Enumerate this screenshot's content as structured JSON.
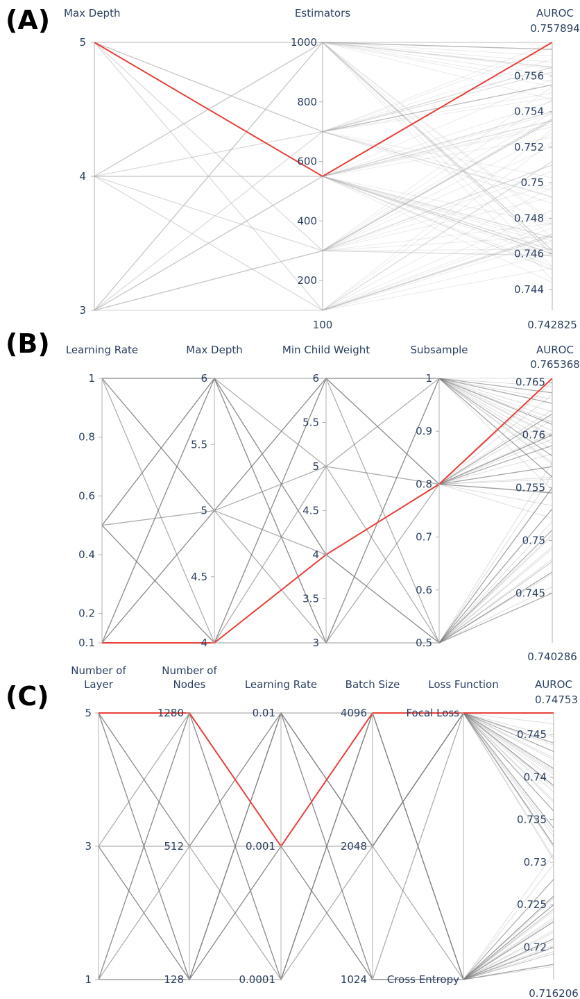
{
  "chart_data": [
    {
      "type": "parallel_coordinates",
      "panel_label": "(A)",
      "highlight_color": "#e8403a",
      "line_color": "#b0b0b0",
      "dimensions": [
        {
          "label": "Max Depth",
          "range": [
            3,
            5
          ],
          "ticks": [
            "3",
            "4",
            "5"
          ]
        },
        {
          "label": "Estimators",
          "range": [
            100,
            1000
          ],
          "ticks": [
            "200",
            "400",
            "600",
            "800",
            "1000"
          ],
          "range_labels": {
            "min": "100",
            "max": ""
          }
        },
        {
          "label": "AUROC",
          "range": [
            0.742825,
            0.757894
          ],
          "ticks": [
            "0.744",
            "0.746",
            "0.748",
            "0.75",
            "0.752",
            "0.754",
            "0.756"
          ],
          "range_labels": {
            "min": "0.742825",
            "max": "0.757894"
          }
        }
      ],
      "lines": [
        [
          5,
          1000,
          0.7575
        ],
        [
          5,
          1000,
          0.7565
        ],
        [
          5,
          700,
          0.7555
        ],
        [
          5,
          300,
          0.7535
        ],
        [
          5,
          100,
          0.7512
        ],
        [
          5,
          700,
          0.7492
        ],
        [
          5,
          550,
          0.7469
        ],
        [
          4,
          1000,
          0.7575
        ],
        [
          4,
          700,
          0.7555
        ],
        [
          4,
          550,
          0.754
        ],
        [
          4,
          300,
          0.7536
        ],
        [
          4,
          100,
          0.7471
        ],
        [
          4,
          550,
          0.7462
        ],
        [
          4,
          1000,
          0.7462
        ],
        [
          3,
          1000,
          0.7575
        ],
        [
          3,
          700,
          0.7565
        ],
        [
          3,
          550,
          0.7535
        ],
        [
          3,
          300,
          0.751
        ],
        [
          3,
          100,
          0.747
        ],
        [
          3,
          550,
          0.746
        ],
        [
          3,
          1000,
          0.746
        ],
        [
          3,
          300,
          0.7459
        ]
      ],
      "best": [
        5,
        550,
        0.757894
      ]
    },
    {
      "type": "parallel_coordinates",
      "panel_label": "(B)",
      "highlight_color": "#e8403a",
      "line_color": "#7a7a7a",
      "dimensions": [
        {
          "label": "Learning Rate",
          "range": [
            0.1,
            1
          ],
          "ticks": [
            "0.1",
            "0.2",
            "0.4",
            "0.6",
            "0.8",
            "1"
          ]
        },
        {
          "label": "Max Depth",
          "range": [
            4,
            6
          ],
          "ticks": [
            "4",
            "4.5",
            "5",
            "5.5",
            "6"
          ]
        },
        {
          "label": "Min Child Weight",
          "range": [
            3,
            6
          ],
          "ticks": [
            "3",
            "3.5",
            "4",
            "4.5",
            "5",
            "5.5",
            "6"
          ]
        },
        {
          "label": "Subsample",
          "range": [
            0.5,
            1
          ],
          "ticks": [
            "0.5",
            "0.6",
            "0.7",
            "0.8",
            "0.9",
            "1"
          ]
        },
        {
          "label": "AUROC",
          "range": [
            0.740286,
            0.765368
          ],
          "ticks": [
            "0.745",
            "0.75",
            "0.755",
            "0.76",
            "0.765"
          ],
          "range_labels": {
            "min": "0.740286",
            "max": "0.765368"
          }
        }
      ],
      "lines": [
        [
          1,
          6,
          6,
          1,
          0.764
        ],
        [
          1,
          4,
          3,
          0.8,
          0.76
        ],
        [
          1,
          5,
          5,
          0.5,
          0.755
        ],
        [
          0.5,
          6,
          3,
          0.5,
          0.753
        ],
        [
          0.5,
          5,
          6,
          0.8,
          0.762
        ],
        [
          0.5,
          4,
          5,
          1,
          0.758
        ],
        [
          0.1,
          5,
          4,
          0.5,
          0.751
        ],
        [
          0.1,
          6,
          5,
          0.8,
          0.759
        ],
        [
          0.1,
          4,
          6,
          1,
          0.756
        ],
        [
          1,
          6,
          4,
          0.8,
          0.757
        ],
        [
          0.5,
          4,
          6,
          0.5,
          0.745
        ],
        [
          0.1,
          6,
          3,
          1,
          0.761
        ],
        [
          1,
          5,
          3,
          1,
          0.763
        ],
        [
          0.5,
          6,
          4,
          0.5,
          0.747
        ],
        [
          0.1,
          5,
          6,
          0.8,
          0.7545
        ]
      ],
      "best": [
        0.1,
        4,
        4,
        0.8,
        0.765368
      ]
    },
    {
      "type": "parallel_coordinates",
      "panel_label": "(C)",
      "highlight_color": "#e8403a",
      "line_color": "#7a7a7a",
      "dimensions": [
        {
          "label": "Number of Layer",
          "label_lines": [
            "Number of",
            "Layer"
          ],
          "range": [
            1,
            5
          ],
          "ticks": [
            "1",
            "3",
            "5"
          ]
        },
        {
          "label": "Number of Nodes",
          "label_lines": [
            "Number of",
            "Nodes"
          ],
          "range": [
            0,
            2
          ],
          "ticks": [
            "128",
            "512",
            "1280"
          ]
        },
        {
          "label": "Learning Rate",
          "range": [
            0,
            2
          ],
          "ticks": [
            "0.0001",
            "0.001",
            "0.01"
          ]
        },
        {
          "label": "Batch Size",
          "range": [
            0,
            2
          ],
          "ticks": [
            "1024",
            "2048",
            "4096"
          ]
        },
        {
          "label": "Loss Function",
          "range": [
            0,
            1
          ],
          "ticks": [
            "Cross Entropy",
            "Focal Loss"
          ]
        },
        {
          "label": "AUROC",
          "range": [
            0.716206,
            0.74753
          ],
          "ticks": [
            "0.72",
            "0.725",
            "0.73",
            "0.735",
            "0.74",
            "0.745"
          ],
          "range_labels": {
            "min": "0.716206",
            "max": "0.74753"
          }
        }
      ],
      "lines": [
        [
          5,
          2,
          0,
          1,
          1,
          0.743
        ],
        [
          5,
          0,
          2,
          0,
          0,
          0.728
        ],
        [
          5,
          1,
          1,
          2,
          1,
          0.739
        ],
        [
          3,
          2,
          1,
          0,
          0,
          0.725
        ],
        [
          3,
          1,
          2,
          1,
          1,
          0.736
        ],
        [
          3,
          0,
          0,
          2,
          0,
          0.721
        ],
        [
          1,
          2,
          2,
          1,
          1,
          0.741
        ],
        [
          1,
          1,
          0,
          2,
          0,
          0.723
        ],
        [
          1,
          0,
          1,
          0,
          1,
          0.732
        ],
        [
          5,
          1,
          2,
          0,
          0,
          0.726
        ],
        [
          1,
          2,
          0,
          2,
          1,
          0.744
        ],
        [
          3,
          0,
          2,
          1,
          0,
          0.72
        ],
        [
          5,
          0,
          1,
          1,
          1,
          0.734
        ],
        [
          1,
          0,
          2,
          2,
          0,
          0.718
        ]
      ],
      "best": [
        5,
        2,
        1,
        2,
        1,
        0.74753
      ]
    }
  ]
}
